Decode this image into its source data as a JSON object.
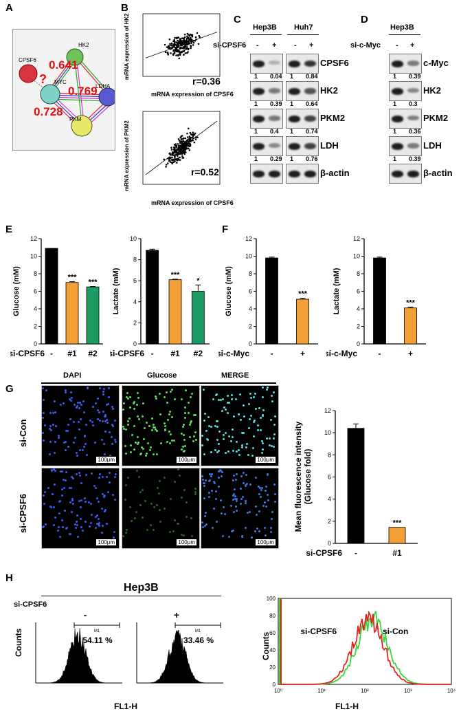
{
  "panels": {
    "A": "A",
    "B": "B",
    "C": "C",
    "D": "D",
    "E": "E",
    "F": "F",
    "G": "G",
    "H": "H"
  },
  "panelA": {
    "nodes": [
      "CPSF6",
      "MYC",
      "HK2",
      "LDHA",
      "PKM"
    ],
    "question": "?",
    "values": [
      "0.641",
      "0.769",
      "0.728"
    ]
  },
  "panelB": {
    "top": {
      "ylabel": "mRNA expression of HK2",
      "xlabel": "mRNA expression of CPSF6",
      "r": "r=0.36"
    },
    "bottom": {
      "ylabel": "mRNA expression of PKM2",
      "xlabel": "mRNA expression of CPSF6",
      "r": "r=0.52"
    }
  },
  "panelC": {
    "cells": [
      "Hep3B",
      "Huh7"
    ],
    "row_label": "si-CPSF6",
    "signs": [
      "-",
      "+",
      "-",
      "+"
    ],
    "proteins": [
      "CPSF6",
      "HK2",
      "PKM2",
      "LDH",
      "β-actin"
    ],
    "quant": [
      [
        "1",
        "0.04",
        "1",
        "0.84"
      ],
      [
        "1",
        "0.39",
        "1",
        "0.64"
      ],
      [
        "1",
        "0.4",
        "1",
        "0.74"
      ],
      [
        "1",
        "0.29",
        "1",
        "0.76"
      ]
    ]
  },
  "panelD": {
    "cell": "Hep3B",
    "row_label": "si-c-Myc",
    "signs": [
      "-",
      "+"
    ],
    "proteins": [
      "c-Myc",
      "HK2",
      "PKM2",
      "LDH",
      "β-actin"
    ],
    "quant": [
      [
        "1",
        "0.39"
      ],
      [
        "1",
        "0.3"
      ],
      [
        "1",
        "0.36"
      ],
      [
        "1",
        "0.39"
      ]
    ]
  },
  "chart_data": [
    {
      "type": "bar",
      "panel": "E",
      "ylabel": "Glucose (mM)",
      "yticks": [
        "0",
        "2",
        "4",
        "6",
        "8",
        "10",
        "12"
      ],
      "ylim": [
        0,
        12
      ],
      "row_label": "si-CPSF6",
      "categories": [
        "-",
        "#1",
        "#2"
      ],
      "values": [
        10.9,
        7.0,
        6.5
      ],
      "errors": [
        0,
        0.1,
        0.05
      ],
      "significance": [
        "",
        "***",
        "***"
      ],
      "colors": [
        "#000000",
        "#f4a038",
        "#1e9a64"
      ]
    },
    {
      "type": "bar",
      "panel": "E",
      "ylabel": "Lactate (mM)",
      "yticks": [
        "0",
        "2",
        "4",
        "6",
        "8",
        "10"
      ],
      "ylim": [
        0,
        10
      ],
      "row_label": "si-CPSF6",
      "categories": [
        "-",
        "#1",
        "#2"
      ],
      "values": [
        8.9,
        6.1,
        5.0
      ],
      "errors": [
        0.1,
        0.05,
        0.6
      ],
      "significance": [
        "",
        "***",
        "*"
      ],
      "colors": [
        "#000000",
        "#f4a038",
        "#1e9a64"
      ]
    },
    {
      "type": "bar",
      "panel": "F",
      "ylabel": "Glucose (mM)",
      "yticks": [
        "0",
        "2",
        "4",
        "6",
        "8",
        "10",
        "12"
      ],
      "ylim": [
        0,
        12
      ],
      "row_label": "si-c-Myc",
      "categories": [
        "-",
        "+"
      ],
      "values": [
        9.8,
        5.1
      ],
      "errors": [
        0.1,
        0.1
      ],
      "significance": [
        "",
        "***"
      ],
      "colors": [
        "#000000",
        "#f4a038"
      ]
    },
    {
      "type": "bar",
      "panel": "F",
      "ylabel": "Lactate (mM)",
      "yticks": [
        "0",
        "2",
        "4",
        "6",
        "8",
        "10",
        "12"
      ],
      "ylim": [
        0,
        12
      ],
      "row_label": "si-c-Myc",
      "categories": [
        "-",
        "+"
      ],
      "values": [
        9.8,
        4.1
      ],
      "errors": [
        0.1,
        0.1
      ],
      "significance": [
        "",
        "***"
      ],
      "colors": [
        "#000000",
        "#f4a038"
      ]
    },
    {
      "type": "bar",
      "panel": "G",
      "ylabel": "Mean fluorescence intensity (Glucose fold)",
      "yticks": [
        "0",
        "2",
        "4",
        "6",
        "8",
        "10",
        "12"
      ],
      "ylim": [
        0,
        12
      ],
      "row_label": "si-CPSF6",
      "categories": [
        "-",
        "#1"
      ],
      "values": [
        10.4,
        1.45
      ],
      "errors": [
        0.4,
        0
      ],
      "significance": [
        "",
        "***"
      ],
      "colors": [
        "#000000",
        "#f4a038"
      ]
    }
  ],
  "panelG": {
    "cols": [
      "DAPI",
      "Glucose",
      "MERGE"
    ],
    "rows": [
      "si-Con",
      "si-CPSF6"
    ],
    "scale": "100μm",
    "bar_ylabel1": "Mean fluorescence intensity",
    "bar_ylabel2": "(Glucose fold)"
  },
  "panelH": {
    "title": "Hep3B",
    "row_label": "si-CPSF6",
    "signs": [
      "-",
      "+"
    ],
    "percents": [
      "54.11 %",
      "33.46 %"
    ],
    "gate": "M1",
    "ylabel": "Counts",
    "xlabel": "FL1-H",
    "legend": [
      "si-CPSF6",
      "si-Con"
    ],
    "yticks": [
      "0",
      "20",
      "40",
      "60",
      "80",
      "100"
    ],
    "xticks": [
      "10⁰",
      "10¹",
      "10²",
      "10³",
      "10⁴"
    ],
    "colors": {
      "si-CPSF6": "#e0241b",
      "si-Con": "#3bd63b"
    }
  }
}
